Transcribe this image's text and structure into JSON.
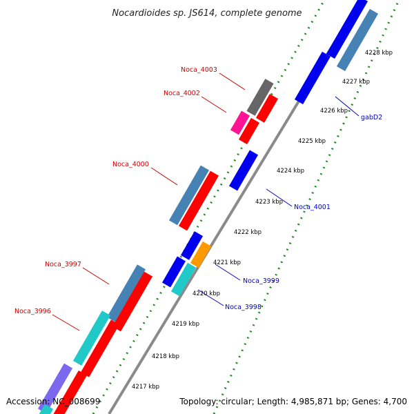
{
  "title": "Nocardioides sp. JS614, complete genome",
  "footer": {
    "accession": "Accession: NC_008699",
    "topology": "Topology: circular; Length: 4,985,871 bp; Genes: 4,700"
  },
  "colors": {
    "backbone": "#8a8a8a",
    "tick_dots": "#1f8a1f",
    "label_left": "#cc0000",
    "label_right": "#0000cc",
    "red": "#ff0000",
    "blue": "#0000ee",
    "steelblue": "#4682b4",
    "cyan": "#20c8c8",
    "gray": "#666666",
    "magenta": "#ff1493",
    "orange": "#ff9900",
    "purple": "#7b68ee"
  },
  "kbp_labels": [
    "4217 kbp",
    "4218 kbp",
    "4219 kbp",
    "4220 kbp",
    "4221 kbp",
    "4222 kbp",
    "4223 kbp",
    "4224 kbp",
    "4225 kbp",
    "4226 kbp",
    "4227 kbp",
    "4228 kbp"
  ],
  "gene_labels": {
    "left": [
      "Noca_4003",
      "Noca_4002",
      "Noca_4000",
      "Noca_3997",
      "Noca_3996"
    ],
    "right": [
      "gabD2",
      "Noca_4001",
      "Noca_3999",
      "Noca_3998"
    ]
  }
}
